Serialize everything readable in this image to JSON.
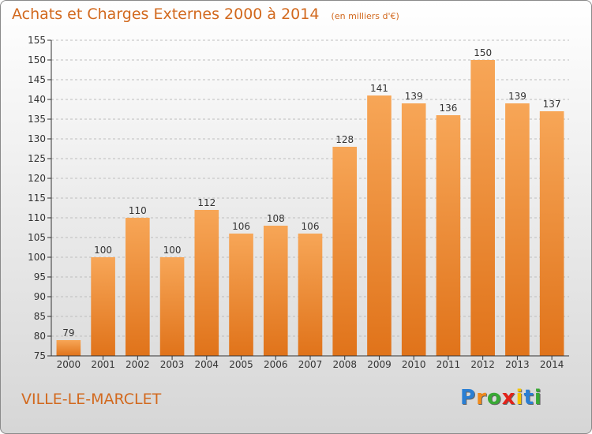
{
  "chart_data": {
    "type": "bar",
    "title": "Achats et Charges Externes 2000 à 2014",
    "subtitle": "(en milliers d'€)",
    "categories": [
      "2000",
      "2001",
      "2002",
      "2003",
      "2004",
      "2005",
      "2006",
      "2007",
      "2008",
      "2009",
      "2010",
      "2011",
      "2012",
      "2013",
      "2014"
    ],
    "values": [
      79,
      100,
      110,
      100,
      112,
      106,
      108,
      106,
      128,
      141,
      139,
      136,
      150,
      139,
      137
    ],
    "ylim": [
      75,
      155
    ],
    "yticks": [
      75,
      80,
      85,
      90,
      95,
      100,
      105,
      110,
      115,
      120,
      125,
      130,
      135,
      140,
      145,
      150,
      155
    ],
    "grid": true,
    "bar_color_top": "#f7a657",
    "bar_color_bottom": "#e0731a"
  },
  "commune": "VILLE-LE-MARCLET",
  "logo": {
    "letters": [
      "P",
      "r",
      "o",
      "x",
      "i",
      "t",
      "i"
    ],
    "colors": [
      "#2a7fd4",
      "#f08a1c",
      "#39a935",
      "#e2231a",
      "#f5c400",
      "#2a7fd4",
      "#39a935"
    ]
  }
}
